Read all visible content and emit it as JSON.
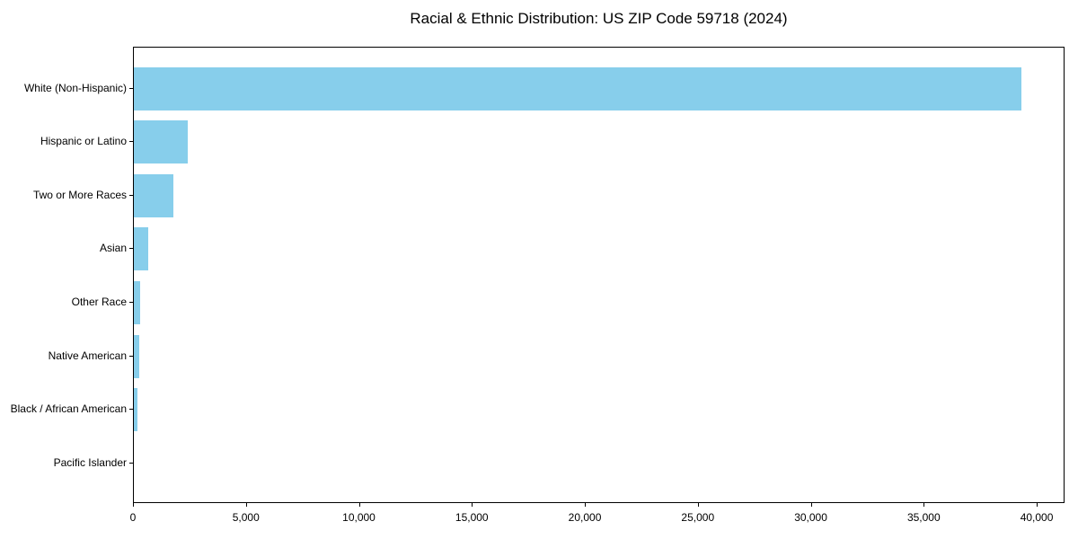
{
  "chart_data": {
    "type": "bar",
    "orientation": "horizontal",
    "title": "Racial & Ethnic Distribution: US ZIP Code 59718 (2024)",
    "xlabel": "",
    "ylabel": "",
    "categories": [
      "White (Non-Hispanic)",
      "Hispanic or Latino",
      "Two or More Races",
      "Asian",
      "Other Race",
      "Native American",
      "Black / African American",
      "Pacific Islander"
    ],
    "values": [
      39270,
      2390,
      1730,
      630,
      260,
      240,
      140,
      0
    ],
    "xlim": [
      0,
      41230
    ],
    "x_ticks": {
      "values": [
        0,
        5000,
        10000,
        15000,
        20000,
        25000,
        30000,
        35000,
        40000
      ],
      "labels": [
        "0",
        "5,000",
        "10,000",
        "15,000",
        "20,000",
        "25,000",
        "30,000",
        "35,000",
        "40,000"
      ]
    },
    "bar_color": "#87CEEB",
    "background_color": "#ffffff",
    "text_color": "#000000",
    "grid": false,
    "legend": false
  }
}
